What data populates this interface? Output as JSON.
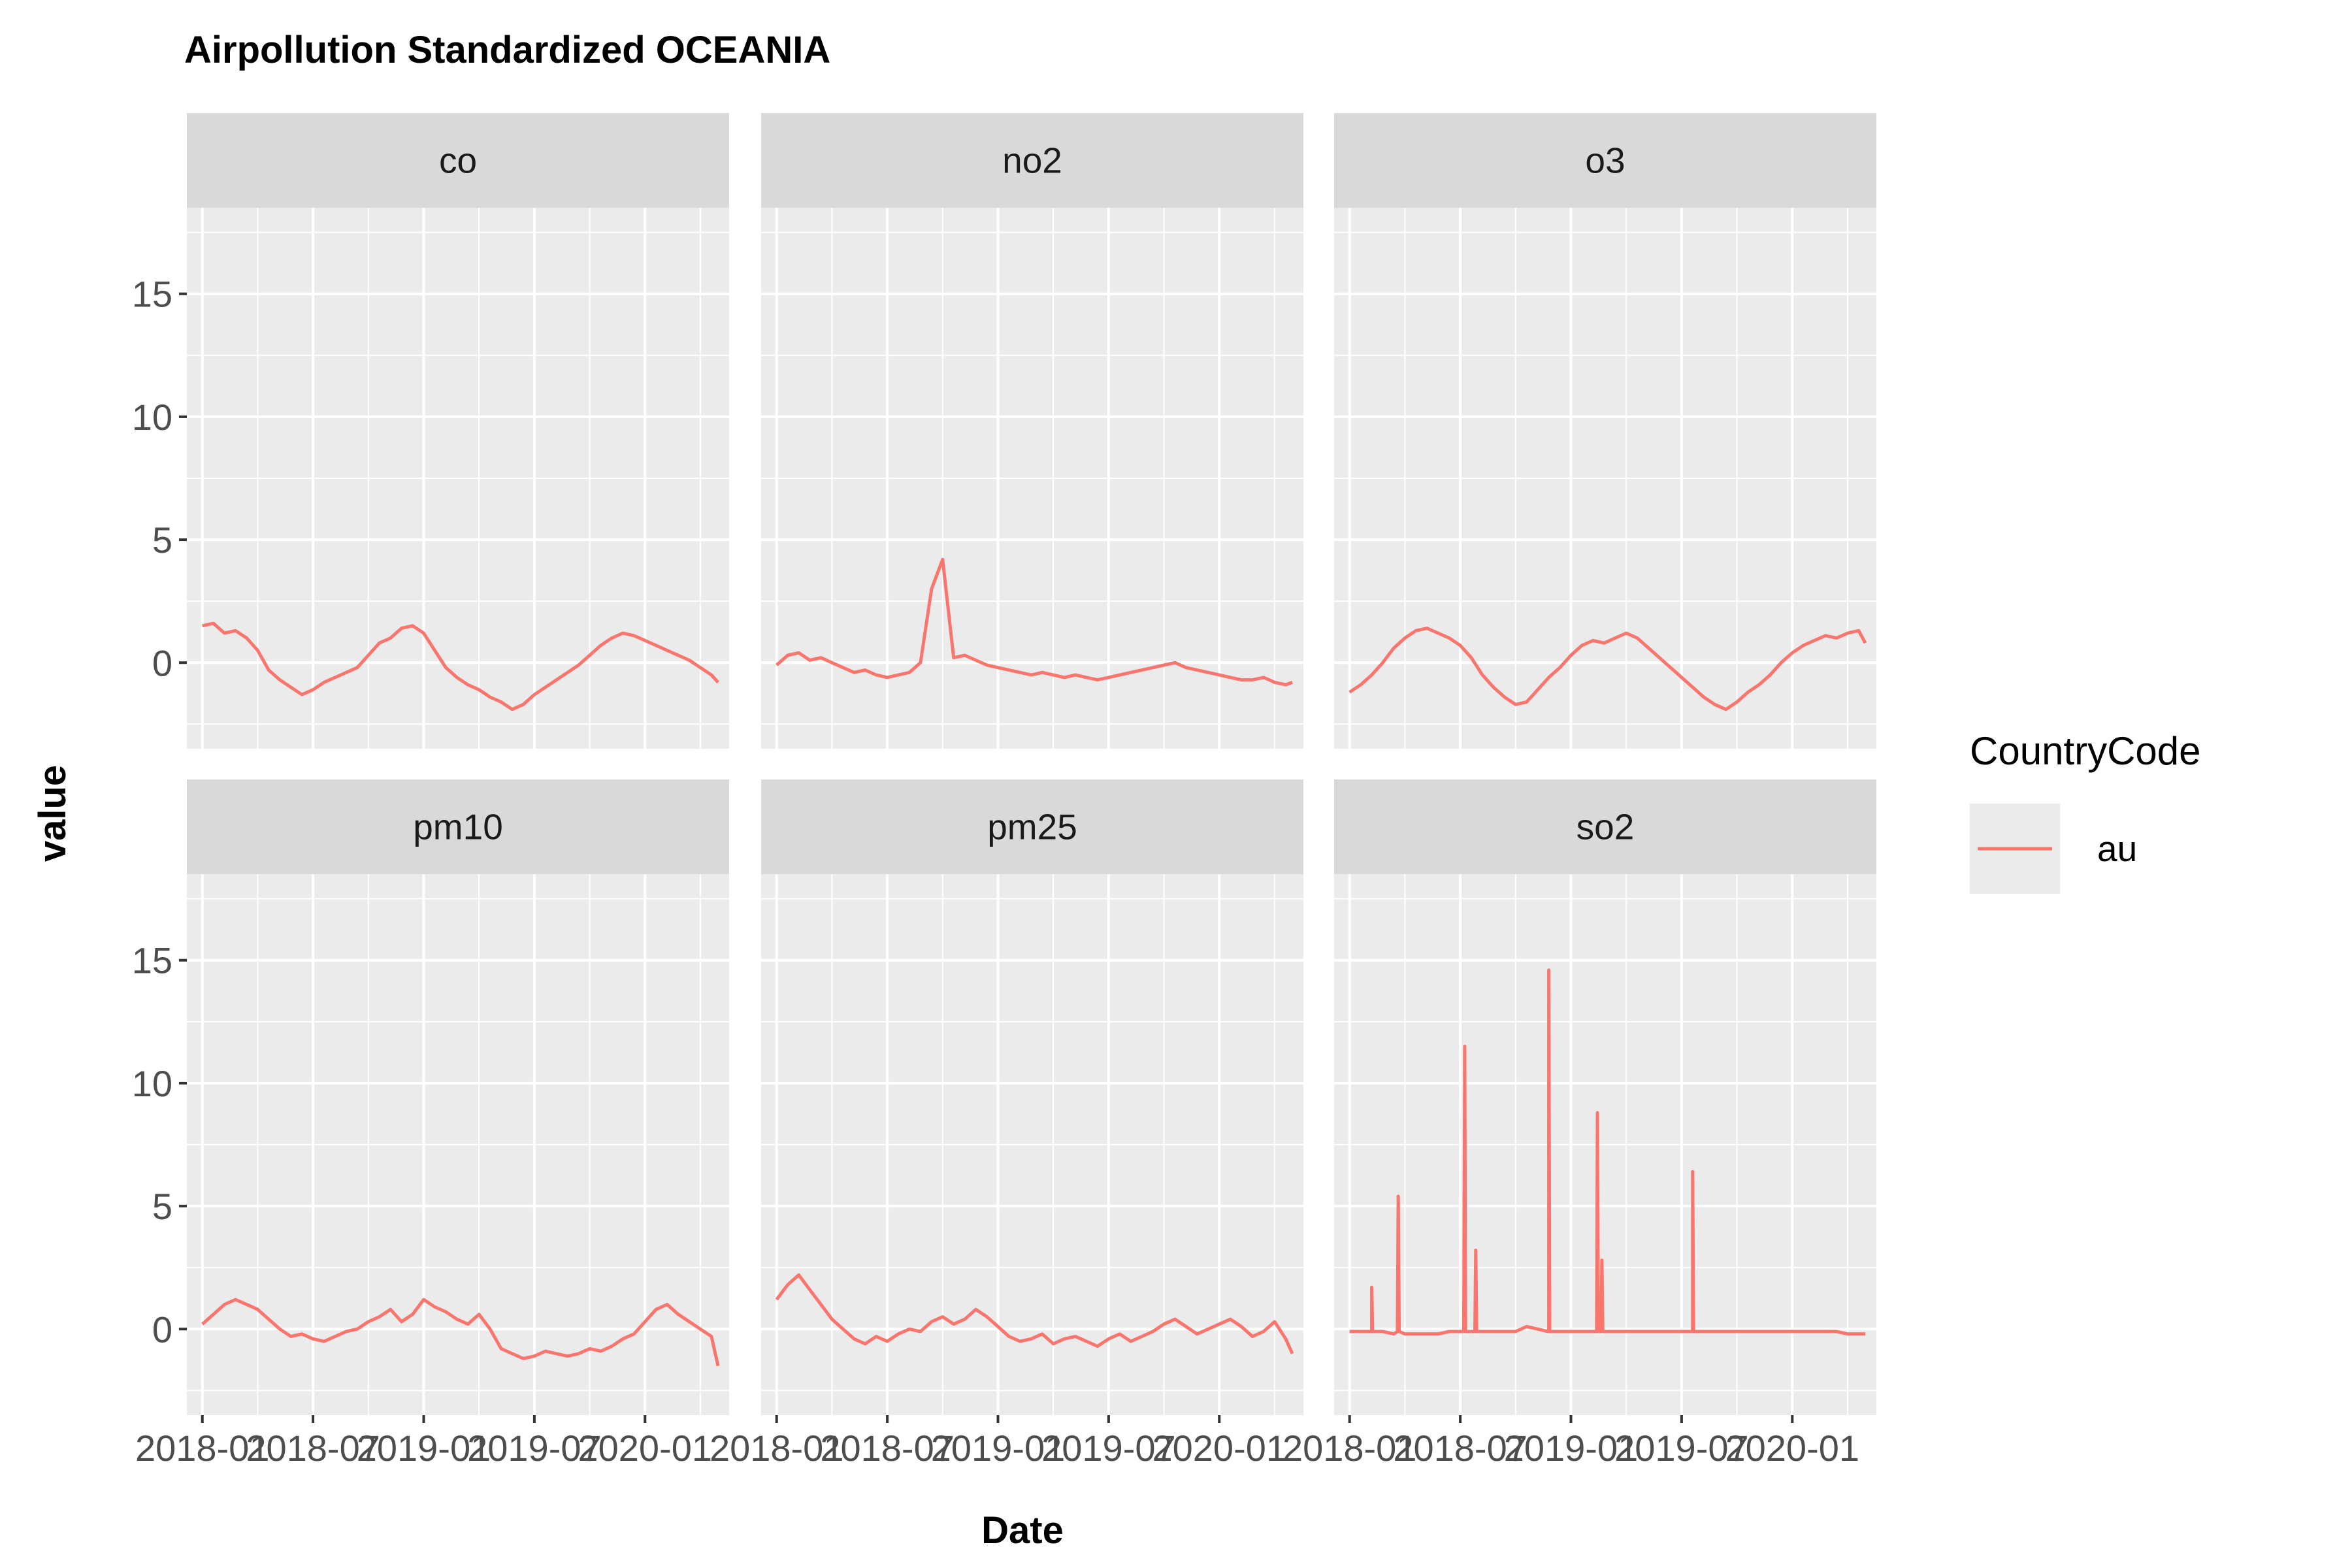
{
  "chart_data": {
    "type": "line",
    "title": "Airpollution Standardized OCEANIA",
    "xlabel": "Date",
    "ylabel": "value",
    "ylim": [
      -3.5,
      18.5
    ],
    "yticks": [
      0,
      5,
      10,
      15
    ],
    "ytick_labels": [
      "0",
      "5",
      "10",
      "15"
    ],
    "xlim": [
      2017.93,
      2020.38
    ],
    "xticks": [
      2018.0,
      2018.5,
      2019.0,
      2019.5,
      2020.0
    ],
    "xtick_labels": [
      "2018-01",
      "2018-07",
      "2019-01",
      "2019-07",
      "2020-01"
    ],
    "legend": {
      "title": "CountryCode",
      "entries": [
        {
          "name": "au",
          "color": "#F8766D"
        }
      ],
      "position": "right"
    },
    "series_color": "#F8766D",
    "facets": [
      {
        "name": "co",
        "label": "co",
        "x": [
          2018.0,
          2018.05,
          2018.1,
          2018.15,
          2018.2,
          2018.25,
          2018.3,
          2018.35,
          2018.4,
          2018.45,
          2018.5,
          2018.55,
          2018.6,
          2018.65,
          2018.7,
          2018.75,
          2018.8,
          2018.85,
          2018.9,
          2018.95,
          2019.0,
          2019.05,
          2019.1,
          2019.15,
          2019.2,
          2019.25,
          2019.3,
          2019.35,
          2019.4,
          2019.45,
          2019.5,
          2019.55,
          2019.6,
          2019.65,
          2019.7,
          2019.75,
          2019.8,
          2019.85,
          2019.9,
          2019.95,
          2020.0,
          2020.05,
          2020.1,
          2020.15,
          2020.2,
          2020.25,
          2020.3,
          2020.33
        ],
        "values": [
          1.5,
          1.6,
          1.2,
          1.3,
          1.0,
          0.5,
          -0.3,
          -0.7,
          -1.0,
          -1.3,
          -1.1,
          -0.8,
          -0.6,
          -0.4,
          -0.2,
          0.3,
          0.8,
          1.0,
          1.4,
          1.5,
          1.2,
          0.5,
          -0.2,
          -0.6,
          -0.9,
          -1.1,
          -1.4,
          -1.6,
          -1.9,
          -1.7,
          -1.3,
          -1.0,
          -0.7,
          -0.4,
          -0.1,
          0.3,
          0.7,
          1.0,
          1.2,
          1.1,
          0.9,
          0.7,
          0.5,
          0.3,
          0.1,
          -0.2,
          -0.5,
          -0.8
        ]
      },
      {
        "name": "no2",
        "label": "no2",
        "x": [
          2018.0,
          2018.05,
          2018.1,
          2018.15,
          2018.2,
          2018.25,
          2018.3,
          2018.35,
          2018.4,
          2018.45,
          2018.5,
          2018.55,
          2018.6,
          2018.65,
          2018.7,
          2018.75,
          2018.8,
          2018.85,
          2018.9,
          2018.95,
          2019.0,
          2019.05,
          2019.1,
          2019.15,
          2019.2,
          2019.25,
          2019.3,
          2019.35,
          2019.4,
          2019.45,
          2019.5,
          2019.55,
          2019.6,
          2019.65,
          2019.7,
          2019.75,
          2019.8,
          2019.85,
          2019.9,
          2019.95,
          2020.0,
          2020.05,
          2020.1,
          2020.15,
          2020.2,
          2020.25,
          2020.3,
          2020.33
        ],
        "values": [
          -0.1,
          0.3,
          0.4,
          0.1,
          0.2,
          0.0,
          -0.2,
          -0.4,
          -0.3,
          -0.5,
          -0.6,
          -0.5,
          -0.4,
          0.0,
          3.0,
          4.2,
          0.2,
          0.3,
          0.1,
          -0.1,
          -0.2,
          -0.3,
          -0.4,
          -0.5,
          -0.4,
          -0.5,
          -0.6,
          -0.5,
          -0.6,
          -0.7,
          -0.6,
          -0.5,
          -0.4,
          -0.3,
          -0.2,
          -0.1,
          0.0,
          -0.2,
          -0.3,
          -0.4,
          -0.5,
          -0.6,
          -0.7,
          -0.7,
          -0.6,
          -0.8,
          -0.9,
          -0.8
        ]
      },
      {
        "name": "o3",
        "label": "o3",
        "x": [
          2018.0,
          2018.05,
          2018.1,
          2018.15,
          2018.2,
          2018.25,
          2018.3,
          2018.35,
          2018.4,
          2018.45,
          2018.5,
          2018.55,
          2018.6,
          2018.65,
          2018.7,
          2018.75,
          2018.8,
          2018.85,
          2018.9,
          2018.95,
          2019.0,
          2019.05,
          2019.1,
          2019.15,
          2019.2,
          2019.25,
          2019.3,
          2019.35,
          2019.4,
          2019.45,
          2019.5,
          2019.55,
          2019.6,
          2019.65,
          2019.7,
          2019.75,
          2019.8,
          2019.85,
          2019.9,
          2019.95,
          2020.0,
          2020.05,
          2020.1,
          2020.15,
          2020.2,
          2020.25,
          2020.3,
          2020.33
        ],
        "values": [
          -1.2,
          -0.9,
          -0.5,
          0.0,
          0.6,
          1.0,
          1.3,
          1.4,
          1.2,
          1.0,
          0.7,
          0.2,
          -0.5,
          -1.0,
          -1.4,
          -1.7,
          -1.6,
          -1.1,
          -0.6,
          -0.2,
          0.3,
          0.7,
          0.9,
          0.8,
          1.0,
          1.2,
          1.0,
          0.6,
          0.2,
          -0.2,
          -0.6,
          -1.0,
          -1.4,
          -1.7,
          -1.9,
          -1.6,
          -1.2,
          -0.9,
          -0.5,
          0.0,
          0.4,
          0.7,
          0.9,
          1.1,
          1.0,
          1.2,
          1.3,
          0.8
        ]
      },
      {
        "name": "pm10",
        "label": "pm10",
        "x": [
          2018.0,
          2018.05,
          2018.1,
          2018.15,
          2018.2,
          2018.25,
          2018.3,
          2018.35,
          2018.4,
          2018.45,
          2018.5,
          2018.55,
          2018.6,
          2018.65,
          2018.7,
          2018.75,
          2018.8,
          2018.85,
          2018.9,
          2018.95,
          2019.0,
          2019.05,
          2019.1,
          2019.15,
          2019.2,
          2019.25,
          2019.3,
          2019.35,
          2019.4,
          2019.45,
          2019.5,
          2019.55,
          2019.6,
          2019.65,
          2019.7,
          2019.75,
          2019.8,
          2019.85,
          2019.9,
          2019.95,
          2020.0,
          2020.05,
          2020.1,
          2020.15,
          2020.2,
          2020.25,
          2020.3,
          2020.33
        ],
        "values": [
          0.2,
          0.6,
          1.0,
          1.2,
          1.0,
          0.8,
          0.4,
          0.0,
          -0.3,
          -0.2,
          -0.4,
          -0.5,
          -0.3,
          -0.1,
          0.0,
          0.3,
          0.5,
          0.8,
          0.3,
          0.6,
          1.2,
          0.9,
          0.7,
          0.4,
          0.2,
          0.6,
          0.0,
          -0.8,
          -1.0,
          -1.2,
          -1.1,
          -0.9,
          -1.0,
          -1.1,
          -1.0,
          -0.8,
          -0.9,
          -0.7,
          -0.4,
          -0.2,
          0.3,
          0.8,
          1.0,
          0.6,
          0.3,
          0.0,
          -0.3,
          -1.5
        ]
      },
      {
        "name": "pm25",
        "label": "pm25",
        "x": [
          2018.0,
          2018.05,
          2018.1,
          2018.15,
          2018.2,
          2018.25,
          2018.3,
          2018.35,
          2018.4,
          2018.45,
          2018.5,
          2018.55,
          2018.6,
          2018.65,
          2018.7,
          2018.75,
          2018.8,
          2018.85,
          2018.9,
          2018.95,
          2019.0,
          2019.05,
          2019.1,
          2019.15,
          2019.2,
          2019.25,
          2019.3,
          2019.35,
          2019.4,
          2019.45,
          2019.5,
          2019.55,
          2019.6,
          2019.65,
          2019.7,
          2019.75,
          2019.8,
          2019.85,
          2019.9,
          2019.95,
          2020.0,
          2020.05,
          2020.1,
          2020.15,
          2020.2,
          2020.25,
          2020.3,
          2020.33
        ],
        "values": [
          1.2,
          1.8,
          2.2,
          1.6,
          1.0,
          0.4,
          0.0,
          -0.4,
          -0.6,
          -0.3,
          -0.5,
          -0.2,
          0.0,
          -0.1,
          0.3,
          0.5,
          0.2,
          0.4,
          0.8,
          0.5,
          0.1,
          -0.3,
          -0.5,
          -0.4,
          -0.2,
          -0.6,
          -0.4,
          -0.3,
          -0.5,
          -0.7,
          -0.4,
          -0.2,
          -0.5,
          -0.3,
          -0.1,
          0.2,
          0.4,
          0.1,
          -0.2,
          0.0,
          0.2,
          0.4,
          0.1,
          -0.3,
          -0.1,
          0.3,
          -0.4,
          -1.0
        ]
      },
      {
        "name": "so2",
        "label": "so2",
        "x": [
          2018.0,
          2018.05,
          2018.1,
          2018.15,
          2018.2,
          2018.25,
          2018.3,
          2018.35,
          2018.4,
          2018.45,
          2018.5,
          2018.55,
          2018.6,
          2018.65,
          2018.7,
          2018.75,
          2018.8,
          2018.85,
          2018.9,
          2018.95,
          2019.0,
          2019.05,
          2019.1,
          2019.15,
          2019.2,
          2019.25,
          2019.3,
          2019.35,
          2019.4,
          2019.45,
          2019.5,
          2019.55,
          2019.6,
          2019.65,
          2019.7,
          2019.75,
          2019.8,
          2019.85,
          2019.9,
          2019.95,
          2020.0,
          2020.05,
          2020.1,
          2020.15,
          2020.2,
          2020.25,
          2020.3,
          2020.33
        ],
        "values": [
          -0.1,
          -0.1,
          -0.1,
          -0.1,
          -0.2,
          -0.2,
          -0.2,
          -0.2,
          -0.2,
          -0.1,
          -0.1,
          -0.1,
          -0.1,
          -0.1,
          -0.1,
          -0.1,
          0.1,
          0.0,
          0.0,
          -0.1,
          -0.1,
          -0.1,
          -0.1,
          -0.1,
          -0.1,
          -0.1,
          -0.1,
          -0.1,
          -0.1,
          -0.1,
          -0.1,
          -0.1,
          -0.1,
          -0.1,
          -0.1,
          -0.1,
          -0.1,
          -0.1,
          -0.1,
          -0.1,
          -0.1,
          -0.1,
          -0.1,
          -0.1,
          -0.1,
          -0.2,
          -0.2,
          -0.2
        ],
        "spikes": [
          {
            "x": 2018.1,
            "value": 1.7
          },
          {
            "x": 2018.22,
            "value": 5.4
          },
          {
            "x": 2018.52,
            "value": 11.5
          },
          {
            "x": 2018.57,
            "value": 3.2
          },
          {
            "x": 2018.9,
            "value": 14.6
          },
          {
            "x": 2019.12,
            "value": 8.8
          },
          {
            "x": 2019.14,
            "value": 2.8
          },
          {
            "x": 2019.55,
            "value": 6.4
          }
        ]
      }
    ]
  }
}
